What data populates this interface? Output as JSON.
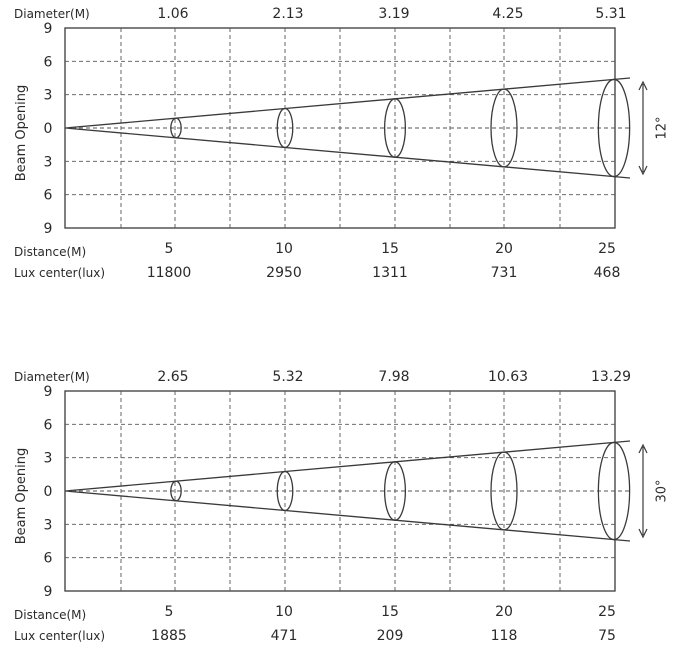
{
  "labels": {
    "diameter": "Diameter(M)",
    "beam_opening": "Beam Opening",
    "distance": "Distance(M)",
    "lux_center": "Lux center(lux)"
  },
  "colors": {
    "line": "#3a3a3a",
    "grid": "#555555",
    "text": "#2a2a2a"
  },
  "diagrams": [
    {
      "angle_label": "12°",
      "beam_angle_deg": 12,
      "y_ticks": [
        "9",
        "6",
        "3",
        "0",
        "3",
        "6",
        "9"
      ],
      "distances": [
        "5",
        "10",
        "15",
        "20",
        "25"
      ],
      "diameters": [
        "1.06",
        "2.13",
        "3.19",
        "4.25",
        "5.31"
      ],
      "lux": [
        "11800",
        "2950",
        "1311",
        "731",
        "468"
      ]
    },
    {
      "angle_label": "30°",
      "beam_angle_deg": 30,
      "y_ticks": [
        "9",
        "6",
        "3",
        "0",
        "3",
        "6",
        "9"
      ],
      "distances": [
        "5",
        "10",
        "15",
        "20",
        "25"
      ],
      "diameters": [
        "2.65",
        "5.32",
        "7.98",
        "10.63",
        "13.29"
      ],
      "lux": [
        "1885",
        "471",
        "209",
        "118",
        "75"
      ]
    }
  ]
}
